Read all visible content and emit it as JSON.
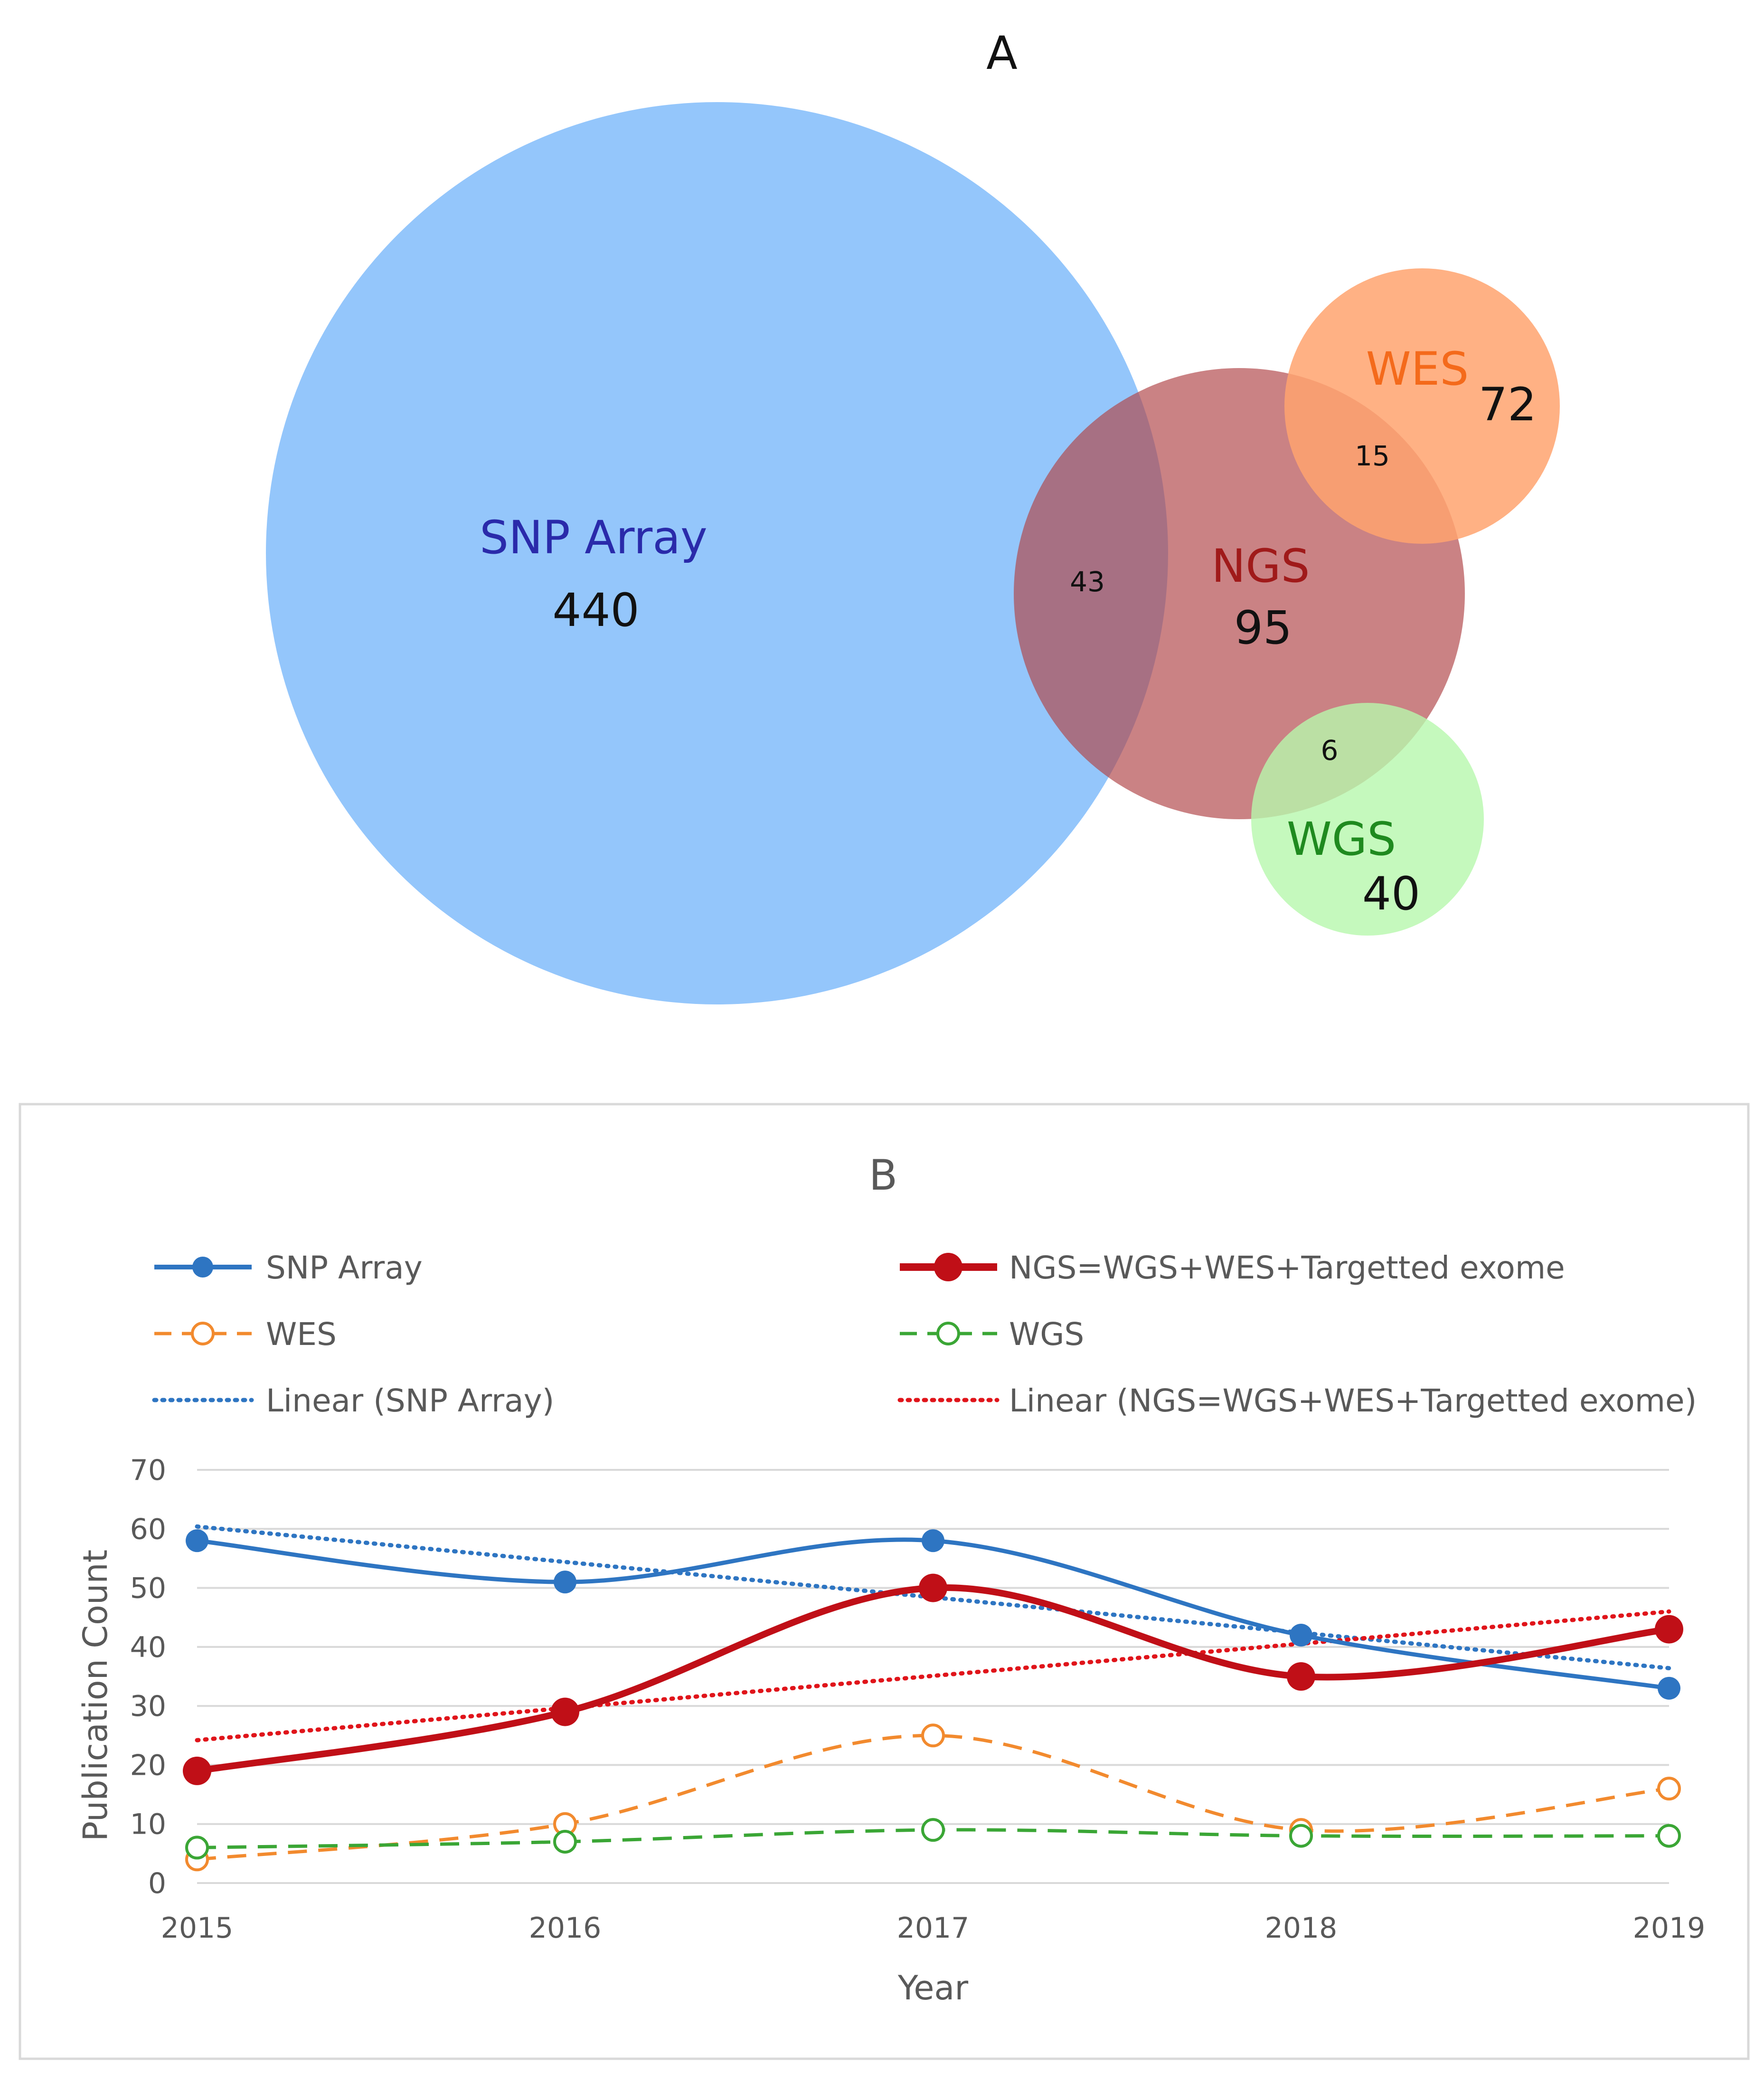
{
  "chart_data": [
    {
      "type": "venn",
      "title": "A",
      "sets": [
        {
          "name": "SNP Array",
          "count": "440",
          "color": "#94c6fb",
          "label_color": "#2a2aaa"
        },
        {
          "name": "NGS",
          "count": "95",
          "color": "#b1474a",
          "label_color": "#a01a1a"
        },
        {
          "name": "WES",
          "count": "72",
          "color": "#ffa36f",
          "label_color": "#f46a1b"
        },
        {
          "name": "WGS",
          "count": "40",
          "color": "#b6f7ad",
          "label_color": "#1f8a1f"
        }
      ],
      "intersections": [
        {
          "sets": [
            "SNP Array",
            "NGS"
          ],
          "count": "43"
        },
        {
          "sets": [
            "NGS",
            "WES"
          ],
          "count": "15"
        },
        {
          "sets": [
            "NGS",
            "WGS"
          ],
          "count": "6"
        }
      ]
    },
    {
      "type": "line",
      "title": "B",
      "xlabel": "Year",
      "ylabel": "Publication Count",
      "x": [
        "2015",
        "2016",
        "2017",
        "2018",
        "2019"
      ],
      "ylim": [
        0,
        70
      ],
      "yticks": [
        "0",
        "10",
        "20",
        "30",
        "40",
        "50",
        "60",
        "70"
      ],
      "grid": true,
      "legend_position": "top",
      "series": [
        {
          "name": "SNP Array",
          "values": [
            58,
            51,
            58,
            42,
            33
          ],
          "color": "#2e75c2",
          "style": "solid",
          "marker": "filled"
        },
        {
          "name": "NGS=WGS+WES+Targetted exome",
          "values": [
            19,
            29,
            50,
            35,
            43
          ],
          "color": "#c00f17",
          "style": "solid-thick",
          "marker": "filled"
        },
        {
          "name": "WES",
          "values": [
            4,
            10,
            25,
            9,
            16
          ],
          "color": "#f28a2e",
          "style": "dashed",
          "marker": "open"
        },
        {
          "name": "WGS",
          "values": [
            6,
            7,
            9,
            8,
            8
          ],
          "color": "#3aa635",
          "style": "dashed",
          "marker": "open"
        },
        {
          "name": "Linear (SNP Array)",
          "values": [
            60.4,
            54.4,
            48.4,
            42.4,
            36.4
          ],
          "color": "#2e75c2",
          "style": "dotted",
          "marker": "none"
        },
        {
          "name": "Linear (NGS=WGS+WES+Targetted exome)",
          "values": [
            24.2,
            29.6,
            35.2,
            40.6,
            46.0
          ],
          "color": "#e0141a",
          "style": "dotted",
          "marker": "none"
        }
      ]
    }
  ]
}
